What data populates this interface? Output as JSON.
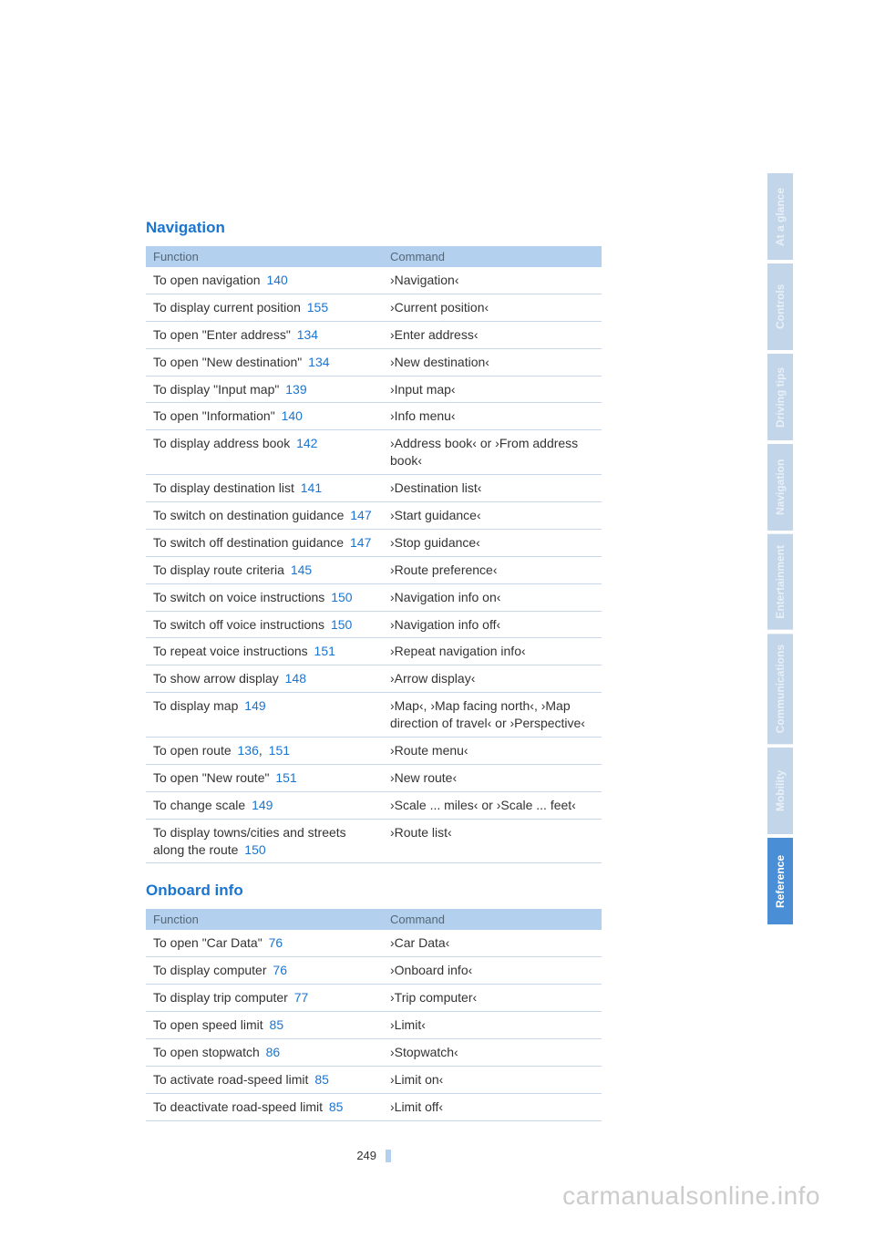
{
  "page_number": "249",
  "watermark": "carmanualsonline.info",
  "sections": [
    {
      "title": "Navigation",
      "header_function": "Function",
      "header_command": "Command",
      "rows": [
        {
          "func": "To open navigation",
          "pages": [
            "140"
          ],
          "cmd": "›Navigation‹"
        },
        {
          "func": "To display current position",
          "pages": [
            "155"
          ],
          "cmd": "›Current position‹"
        },
        {
          "func": "To open \"Enter address\"",
          "pages": [
            "134"
          ],
          "cmd": "›Enter address‹"
        },
        {
          "func": "To open \"New destination\"",
          "pages": [
            "134"
          ],
          "cmd": "›New destination‹"
        },
        {
          "func": "To display \"Input map\"",
          "pages": [
            "139"
          ],
          "cmd": "›Input map‹"
        },
        {
          "func": "To open \"Information\"",
          "pages": [
            "140"
          ],
          "cmd": "›Info menu‹"
        },
        {
          "func": "To display address book",
          "pages": [
            "142"
          ],
          "cmd": "›Address book‹ or ›From address book‹"
        },
        {
          "func": "To display destination list",
          "pages": [
            "141"
          ],
          "cmd": "›Destination list‹"
        },
        {
          "func": "To switch on destination guidance",
          "pages": [
            "147"
          ],
          "cmd": "›Start guidance‹"
        },
        {
          "func": "To switch off destination guidance",
          "pages": [
            "147"
          ],
          "cmd": "›Stop guidance‹"
        },
        {
          "func": "To display route criteria",
          "pages": [
            "145"
          ],
          "cmd": "›Route preference‹"
        },
        {
          "func": "To switch on voice instructions",
          "pages": [
            "150"
          ],
          "cmd": "›Navigation info on‹"
        },
        {
          "func": "To switch off voice instructions",
          "pages": [
            "150"
          ],
          "cmd": "›Navigation info off‹"
        },
        {
          "func": "To repeat voice instructions",
          "pages": [
            "151"
          ],
          "cmd": "›Repeat navigation info‹"
        },
        {
          "func": "To show arrow display",
          "pages": [
            "148"
          ],
          "cmd": "›Arrow display‹"
        },
        {
          "func": "To display map",
          "pages": [
            "149"
          ],
          "cmd": "›Map‹, ›Map facing north‹, ›Map direction of travel‹ or ›Perspective‹"
        },
        {
          "func": "To open route",
          "pages": [
            "136",
            "151"
          ],
          "cmd": "›Route menu‹"
        },
        {
          "func": "To open \"New route\"",
          "pages": [
            "151"
          ],
          "cmd": "›New route‹"
        },
        {
          "func": "To change scale",
          "pages": [
            "149"
          ],
          "cmd": "›Scale ... miles‹ or ›Scale ... feet‹"
        },
        {
          "func": "To display towns/cities and streets along the route",
          "pages": [
            "150"
          ],
          "cmd": "›Route list‹"
        }
      ]
    },
    {
      "title": "Onboard info",
      "header_function": "Function",
      "header_command": "Command",
      "rows": [
        {
          "func": "To open \"Car Data\"",
          "pages": [
            "76"
          ],
          "cmd": "›Car Data‹"
        },
        {
          "func": "To display computer",
          "pages": [
            "76"
          ],
          "cmd": "›Onboard info‹"
        },
        {
          "func": "To display trip computer",
          "pages": [
            "77"
          ],
          "cmd": "›Trip computer‹"
        },
        {
          "func": "To open speed limit",
          "pages": [
            "85"
          ],
          "cmd": "›Limit‹"
        },
        {
          "func": "To open stopwatch",
          "pages": [
            "86"
          ],
          "cmd": "›Stopwatch‹"
        },
        {
          "func": "To activate road-speed limit",
          "pages": [
            "85"
          ],
          "cmd": "›Limit on‹"
        },
        {
          "func": "To deactivate road-speed limit",
          "pages": [
            "85"
          ],
          "cmd": "›Limit off‹"
        }
      ]
    }
  ],
  "tabs": [
    {
      "label": "At a glance",
      "active": false
    },
    {
      "label": "Controls",
      "active": false
    },
    {
      "label": "Driving tips",
      "active": false
    },
    {
      "label": "Navigation",
      "active": false
    },
    {
      "label": "Entertainment",
      "active": false
    },
    {
      "label": "Communications",
      "active": false
    },
    {
      "label": "Mobility",
      "active": false
    },
    {
      "label": "Reference",
      "active": true
    }
  ]
}
